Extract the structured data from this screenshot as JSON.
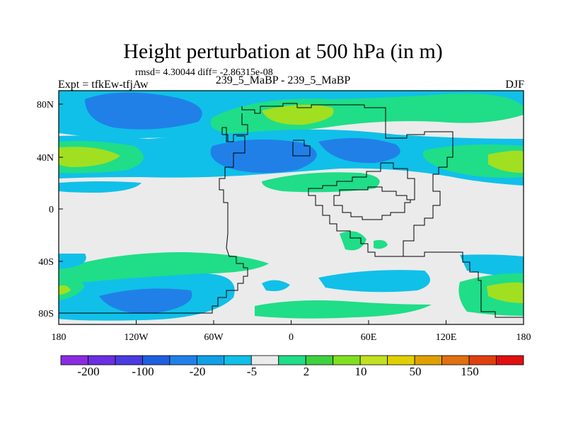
{
  "title": "Height perturbation at 500 hPa (in m)",
  "stats": "rmsd= 4.30044 diff= -2.86315e-08",
  "left_label": "Expt = tfkEw-tfjAw",
  "center_label": "239_5_MaBP - 239_5_MaBP",
  "right_label": "DJF",
  "map": {
    "lon_range": [
      -180,
      180
    ],
    "lat_range": [
      -90,
      90
    ],
    "x_ticks": [
      "180",
      "120W",
      "60W",
      "0",
      "60E",
      "120E",
      "180"
    ],
    "y_ticks": [
      "80N",
      "40N",
      "0",
      "40S",
      "80S"
    ]
  },
  "colorbar": {
    "labels": [
      "-200",
      "-100",
      "-20",
      "-5",
      "2",
      "10",
      "50",
      "150"
    ],
    "colors": [
      "#8a2be2",
      "#6a2fe0",
      "#4a3ae0",
      "#1e5fe0",
      "#2080e8",
      "#10a0e6",
      "#10c0e8",
      "#ebebeb",
      "#20dd88",
      "#40d040",
      "#80e020",
      "#c0e020",
      "#e0d000",
      "#e0a000",
      "#e07010",
      "#e04010",
      "#e01010"
    ]
  },
  "colors": {
    "background": "#ebebeb",
    "neg_light": "#10c0e8",
    "neg_mid": "#10a0e6",
    "neg_dark": "#2080e8",
    "pos_light": "#20dd88",
    "pos_mid": "#40d040",
    "pos_strong": "#a0e020"
  }
}
